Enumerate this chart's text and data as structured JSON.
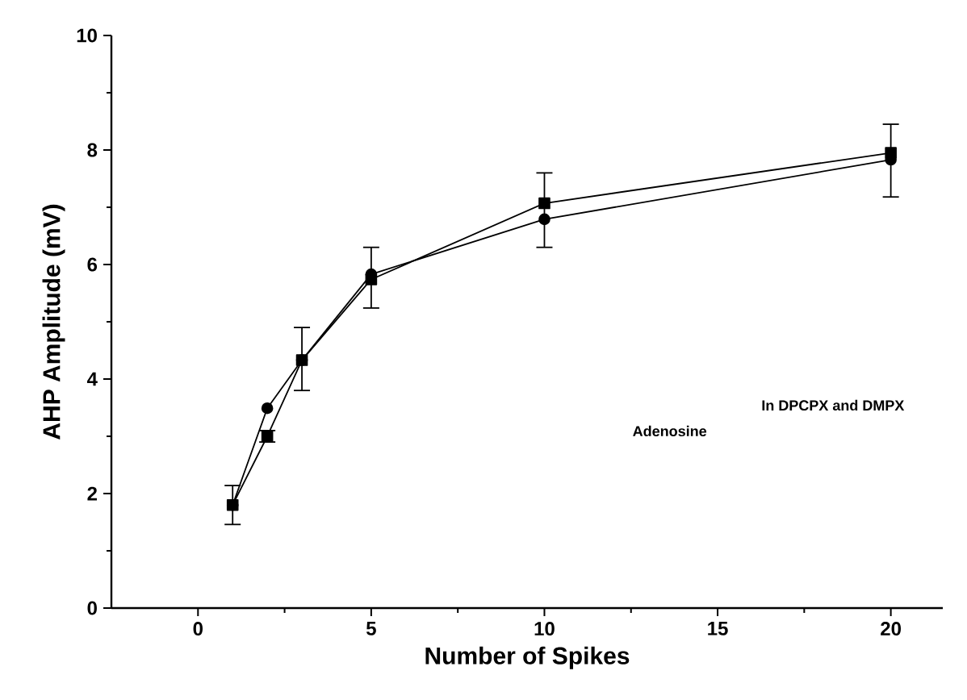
{
  "chart_data": {
    "type": "line",
    "xlabel": "Number of Spikes",
    "ylabel": "AHP Amplitude (mV)",
    "xlim": [
      -2.5,
      21.5
    ],
    "xticks": [
      0,
      5,
      10,
      15,
      20
    ],
    "ylim": [
      0,
      10
    ],
    "yticks": [
      0,
      2,
      4,
      6,
      8,
      10
    ],
    "x": [
      1,
      2,
      3,
      5,
      10,
      20
    ],
    "series": [
      {
        "color": "#000000",
        "marker": "square",
        "values": [
          1.8,
          3.0,
          4.33,
          5.74,
          7.07,
          7.95
        ],
        "errors": [
          [
            1.46,
            2.14
          ],
          [
            2.9,
            3.1
          ],
          [
            3.8,
            4.9
          ],
          [
            5.24,
            6.3
          ],
          [
            6.3,
            7.6
          ],
          [
            7.18,
            8.45
          ]
        ]
      },
      {
        "color": "#000000",
        "marker": "circle",
        "values": [
          1.8,
          3.49,
          4.33,
          5.83,
          6.79,
          7.83
        ]
      }
    ],
    "annotations": [
      "Adenosine",
      "In DPCPX and DMPX"
    ]
  }
}
